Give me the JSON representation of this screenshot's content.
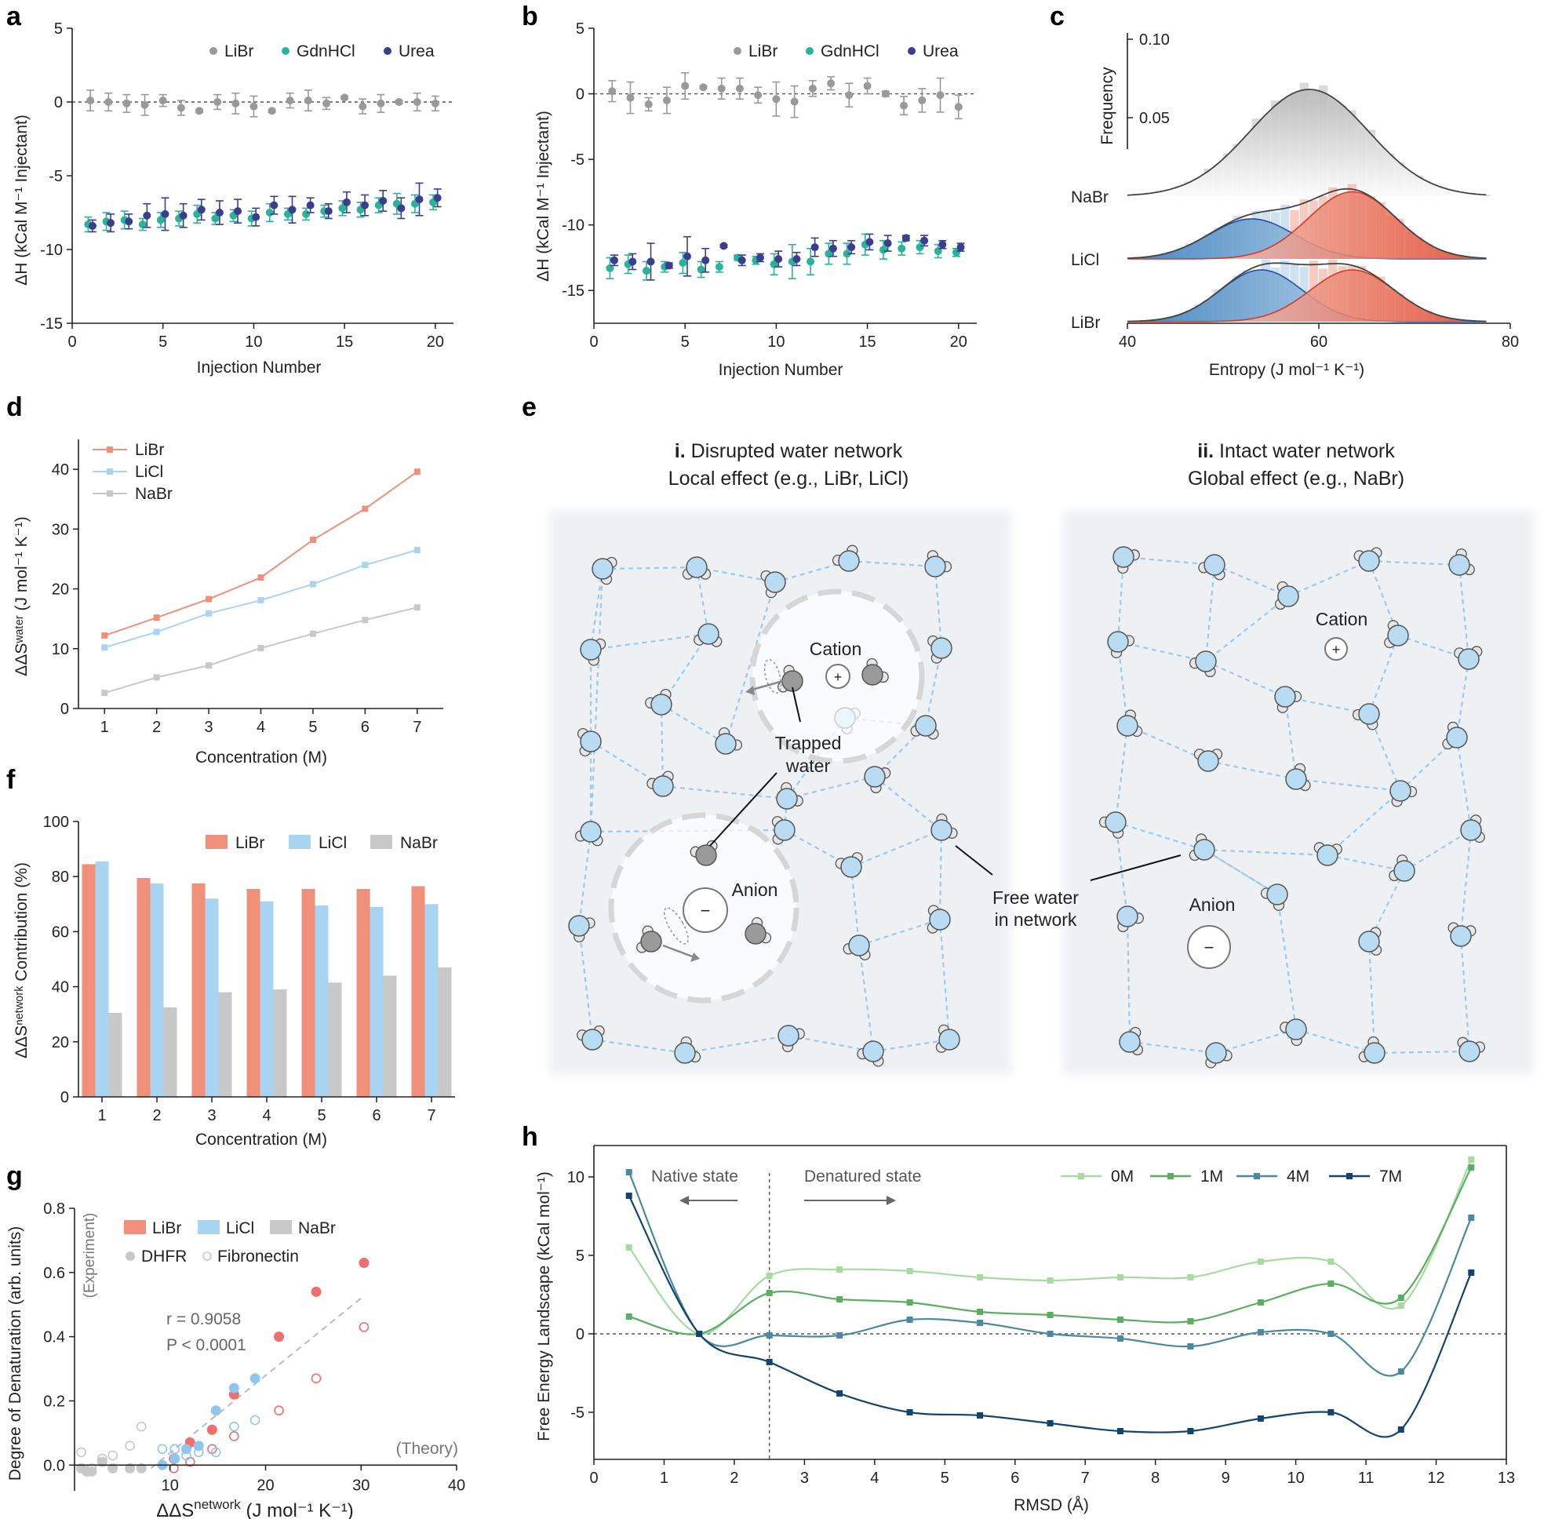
{
  "colors": {
    "libr": "#f0907a",
    "licl": "#a8d4f2",
    "nabr": "#c8c8c8",
    "gray_pts": "#999999",
    "teal": "#2bb39a",
    "navy": "#3b3d8f",
    "h0": "#a6dba0",
    "h1": "#5aae61",
    "h4": "#4a89a0",
    "h7": "#13446e",
    "water": "#b9dcf3",
    "water_edge": "#555555"
  },
  "chart_data": [
    {
      "id": "a",
      "type": "scatter",
      "panel_label": "a",
      "xlabel": "Injection Number",
      "ylabel": "ΔH (kCal M⁻¹ Injectant)",
      "xlim": [
        0,
        21
      ],
      "ylim": [
        -15,
        5
      ],
      "xticks": [
        "0",
        "5",
        "10",
        "15",
        "20"
      ],
      "yticks": [
        "5",
        "0",
        "-5",
        "-10",
        "-15"
      ],
      "legend": [
        "LiBr",
        "GdnHCl",
        "Urea"
      ],
      "x": [
        1,
        2,
        3,
        4,
        5,
        6,
        7,
        8,
        9,
        10,
        11,
        12,
        13,
        14,
        15,
        16,
        17,
        18,
        19,
        20
      ],
      "series": [
        {
          "name": "LiBr",
          "values": [
            0.1,
            0.0,
            -0.1,
            -0.2,
            0.1,
            -0.4,
            -0.6,
            0.0,
            -0.1,
            -0.3,
            -0.6,
            0.1,
            0.1,
            -0.1,
            0.3,
            -0.3,
            -0.1,
            0.0,
            0.0,
            -0.1
          ],
          "err": [
            0.7,
            0.6,
            0.6,
            0.7,
            0.4,
            0.5,
            0.1,
            0.5,
            0.7,
            0.7,
            0.1,
            0.5,
            0.7,
            0.4,
            0.1,
            0.5,
            0.6,
            0.1,
            0.6,
            0.5
          ]
        },
        {
          "name": "GdnHCl",
          "values": [
            -8.3,
            -8.1,
            -8.0,
            -8.3,
            -8.0,
            -7.9,
            -7.6,
            -7.9,
            -7.7,
            -7.9,
            -7.5,
            -7.6,
            -7.6,
            -7.4,
            -7.2,
            -7.3,
            -7.0,
            -6.9,
            -6.9,
            -6.8
          ],
          "err": [
            0.5,
            0.6,
            0.6,
            0.4,
            0.5,
            0.5,
            0.6,
            0.4,
            0.4,
            0.5,
            0.6,
            0.4,
            0.4,
            0.4,
            0.5,
            0.5,
            0.5,
            0.7,
            0.6,
            0.5
          ]
        },
        {
          "name": "Urea",
          "values": [
            -8.4,
            -8.2,
            -8.1,
            -7.7,
            -7.6,
            -7.7,
            -7.3,
            -7.5,
            -7.4,
            -7.8,
            -7.0,
            -7.3,
            -7.0,
            -7.4,
            -6.8,
            -7.0,
            -6.7,
            -7.2,
            -6.6,
            -6.5
          ],
          "err": [
            0.4,
            0.6,
            0.5,
            0.8,
            1.1,
            0.8,
            0.7,
            0.8,
            0.8,
            0.6,
            0.6,
            0.9,
            0.5,
            0.5,
            0.7,
            0.7,
            0.7,
            0.7,
            1.1,
            0.6
          ]
        }
      ]
    },
    {
      "id": "b",
      "type": "scatter",
      "panel_label": "b",
      "xlabel": "Injection Number",
      "ylabel": "ΔH (kCal M⁻¹ Injectant)",
      "xlim": [
        0,
        21
      ],
      "ylim": [
        -17.5,
        5
      ],
      "xticks": [
        "0",
        "5",
        "10",
        "15",
        "20"
      ],
      "yticks": [
        "5",
        "0",
        "-5",
        "-10",
        "-15"
      ],
      "legend": [
        "LiBr",
        "GdnHCl",
        "Urea"
      ],
      "x": [
        1,
        2,
        3,
        4,
        5,
        6,
        7,
        8,
        9,
        10,
        11,
        12,
        13,
        14,
        15,
        16,
        17,
        18,
        19,
        20
      ],
      "series": [
        {
          "name": "LiBr",
          "values": [
            0.2,
            -0.3,
            -0.8,
            -0.5,
            0.6,
            0.5,
            0.4,
            0.4,
            -0.1,
            -0.4,
            -0.6,
            0.4,
            0.8,
            -0.1,
            0.6,
            0.0,
            -0.9,
            -0.5,
            -0.1,
            -1.0
          ],
          "err": [
            0.8,
            1.2,
            0.5,
            1.0,
            1.0,
            0.1,
            0.8,
            0.8,
            0.6,
            1.3,
            1.2,
            0.6,
            0.5,
            0.9,
            0.6,
            0.2,
            0.7,
            0.9,
            1.3,
            0.9
          ]
        },
        {
          "name": "GdnHCl",
          "values": [
            -13.3,
            -13.0,
            -13.5,
            -13.2,
            -12.9,
            -13.4,
            -13.2,
            -12.5,
            -12.7,
            -13.0,
            -12.8,
            -12.8,
            -12.2,
            -12.2,
            -11.5,
            -11.9,
            -11.8,
            -11.7,
            -12.0,
            -12.1
          ],
          "err": [
            0.8,
            0.7,
            0.7,
            0.4,
            0.8,
            0.6,
            0.4,
            0.2,
            0.3,
            0.8,
            1.3,
            1.0,
            0.8,
            0.8,
            0.8,
            0.7,
            0.5,
            0.5,
            0.5,
            0.3
          ]
        },
        {
          "name": "Urea",
          "values": [
            -12.7,
            -12.8,
            -12.8,
            -13.1,
            -12.4,
            -12.7,
            -11.6,
            -12.7,
            -12.5,
            -12.6,
            -12.6,
            -11.7,
            -11.8,
            -11.7,
            -11.3,
            -11.4,
            -11.0,
            -11.2,
            -11.5,
            -11.7
          ],
          "err": [
            0.4,
            0.6,
            1.4,
            0.2,
            1.5,
            0.9,
            0.1,
            0.4,
            0.3,
            0.6,
            0.5,
            0.7,
            0.6,
            0.5,
            0.6,
            0.6,
            0.2,
            0.4,
            0.3,
            0.3
          ]
        }
      ]
    },
    {
      "id": "c",
      "type": "area",
      "panel_label": "c",
      "xlabel": "Entropy (J mol⁻¹ K⁻¹)",
      "ylabel": "Frequency",
      "xlim": [
        40,
        80
      ],
      "xticks": [
        "40",
        "60",
        "80"
      ],
      "yticks": [
        "0.10",
        "0.05"
      ],
      "row_labels": [
        "NaBr",
        "LiCl",
        "LiBr"
      ],
      "rows": [
        {
          "name": "NaBr",
          "fit_peaks": [
            {
              "mu": 59,
              "sigma": 6.2,
              "amp": 0.068
            }
          ]
        },
        {
          "name": "LiCl",
          "fit_peaks": [
            {
              "mu": 53,
              "sigma": 4.5,
              "amp": 0.034
            },
            {
              "mu": 63.5,
              "sigma": 4.6,
              "amp": 0.057
            }
          ]
        },
        {
          "name": "LiBr",
          "fit_peaks": [
            {
              "mu": 54,
              "sigma": 4.3,
              "amp": 0.044
            },
            {
              "mu": 63.5,
              "sigma": 4.4,
              "amp": 0.044
            }
          ]
        }
      ]
    },
    {
      "id": "d",
      "type": "line",
      "panel_label": "d",
      "xlabel": "Concentration (M)",
      "ylabel": "ΔΔSʷᵃᵗᵉʳ (J mol⁻¹ K⁻¹)",
      "xlim": [
        0.5,
        7.5
      ],
      "ylim": [
        0,
        45
      ],
      "xticks": [
        "1",
        "2",
        "3",
        "4",
        "5",
        "6",
        "7"
      ],
      "yticks": [
        "0",
        "10",
        "20",
        "30",
        "40"
      ],
      "x": [
        1,
        2,
        3,
        4,
        5,
        6,
        7
      ],
      "series": [
        {
          "name": "LiBr",
          "values": [
            12.2,
            15.2,
            18.3,
            21.9,
            28.2,
            33.4,
            39.6
          ]
        },
        {
          "name": "LiCl",
          "values": [
            10.2,
            12.8,
            15.9,
            18.1,
            20.8,
            24.0,
            26.5
          ]
        },
        {
          "name": "NaBr",
          "values": [
            2.6,
            5.2,
            7.2,
            10.1,
            12.5,
            14.8,
            16.9
          ]
        }
      ]
    },
    {
      "id": "f",
      "type": "bar",
      "panel_label": "f",
      "xlabel": "Concentration (M)",
      "ylabel": "ΔΔSⁿᵉᵗʷᵒʳᵏ Contribution (%)",
      "ylim": [
        0,
        100
      ],
      "categories": [
        "1",
        "2",
        "3",
        "4",
        "5",
        "6",
        "7"
      ],
      "yticks": [
        "0",
        "20",
        "40",
        "60",
        "80",
        "100"
      ],
      "series": [
        {
          "name": "LiBr",
          "values": [
            84.5,
            79.5,
            77.5,
            75.5,
            75.5,
            75.5,
            76.5
          ]
        },
        {
          "name": "LiCl",
          "values": [
            85.5,
            77.5,
            72.0,
            71.0,
            69.5,
            69.0,
            70.0
          ]
        },
        {
          "name": "NaBr",
          "values": [
            30.5,
            32.5,
            38.0,
            39.0,
            41.5,
            44.0,
            47.0
          ]
        }
      ]
    },
    {
      "id": "g",
      "type": "scatter",
      "panel_label": "g",
      "xlabel": "ΔΔS",
      "xlabel_sup": "network",
      "xlabel_units": " (J mol⁻¹ K⁻¹)",
      "ylabel": "Degree of Denaturation (arb. units)",
      "xlim": [
        0,
        40
      ],
      "ylim": [
        -0.08,
        0.8
      ],
      "xticks": [
        "10",
        "20",
        "30",
        "40"
      ],
      "yticks": [
        "0.0",
        "0.2",
        "0.4",
        "0.6",
        "0.8"
      ],
      "legend": [
        "LiBr",
        "LiCl",
        "NaBr",
        "DHFR",
        "Fibronectin"
      ],
      "annotation_r": "r = 0.9058",
      "annotation_p": "P < 0.0001",
      "corner_experiment": "(Experiment)",
      "corner_theory": "(Theory)",
      "fit_line": {
        "x0": 8,
        "y0": -0.01,
        "x1": 30,
        "y1": 0.52
      },
      "points": [
        {
          "salt": "LiBr",
          "protein": "DHFR",
          "x": 30.3,
          "y": 0.63
        },
        {
          "salt": "LiBr",
          "protein": "DHFR",
          "x": 25.3,
          "y": 0.54
        },
        {
          "salt": "LiBr",
          "protein": "DHFR",
          "x": 21.4,
          "y": 0.4
        },
        {
          "salt": "LiBr",
          "protein": "DHFR",
          "x": 16.7,
          "y": 0.22
        },
        {
          "salt": "LiBr",
          "protein": "DHFR",
          "x": 14.4,
          "y": 0.11
        },
        {
          "salt": "LiBr",
          "protein": "DHFR",
          "x": 12.1,
          "y": 0.07
        },
        {
          "salt": "LiBr",
          "protein": "DHFR",
          "x": 10.4,
          "y": 0.02
        },
        {
          "salt": "LiBr",
          "protein": "Fibronectin",
          "x": 30.3,
          "y": 0.43
        },
        {
          "salt": "LiBr",
          "protein": "Fibronectin",
          "x": 25.3,
          "y": 0.27
        },
        {
          "salt": "LiBr",
          "protein": "Fibronectin",
          "x": 21.4,
          "y": 0.17
        },
        {
          "salt": "LiBr",
          "protein": "Fibronectin",
          "x": 16.7,
          "y": 0.09
        },
        {
          "salt": "LiBr",
          "protein": "Fibronectin",
          "x": 14.4,
          "y": 0.05
        },
        {
          "salt": "LiBr",
          "protein": "Fibronectin",
          "x": 12.1,
          "y": 0.01
        },
        {
          "salt": "LiBr",
          "protein": "Fibronectin",
          "x": 10.4,
          "y": -0.01
        },
        {
          "salt": "LiCl",
          "protein": "DHFR",
          "x": 18.9,
          "y": 0.27
        },
        {
          "salt": "LiCl",
          "protein": "DHFR",
          "x": 16.7,
          "y": 0.24
        },
        {
          "salt": "LiCl",
          "protein": "DHFR",
          "x": 14.8,
          "y": 0.17
        },
        {
          "salt": "LiCl",
          "protein": "DHFR",
          "x": 13.0,
          "y": 0.06
        },
        {
          "salt": "LiCl",
          "protein": "DHFR",
          "x": 11.7,
          "y": 0.05
        },
        {
          "salt": "LiCl",
          "protein": "DHFR",
          "x": 10.5,
          "y": 0.02
        },
        {
          "salt": "LiCl",
          "protein": "DHFR",
          "x": 9.2,
          "y": 0.0
        },
        {
          "salt": "LiCl",
          "protein": "Fibronectin",
          "x": 18.9,
          "y": 0.14
        },
        {
          "salt": "LiCl",
          "protein": "Fibronectin",
          "x": 16.7,
          "y": 0.12
        },
        {
          "salt": "LiCl",
          "protein": "Fibronectin",
          "x": 14.8,
          "y": 0.04
        },
        {
          "salt": "LiCl",
          "protein": "Fibronectin",
          "x": 13.0,
          "y": 0.04
        },
        {
          "salt": "LiCl",
          "protein": "Fibronectin",
          "x": 11.7,
          "y": 0.03
        },
        {
          "salt": "LiCl",
          "protein": "Fibronectin",
          "x": 10.5,
          "y": 0.05
        },
        {
          "salt": "LiCl",
          "protein": "Fibronectin",
          "x": 9.2,
          "y": 0.05
        },
        {
          "salt": "NaBr",
          "protein": "DHFR",
          "x": 7.0,
          "y": -0.01
        },
        {
          "salt": "NaBr",
          "protein": "DHFR",
          "x": 5.8,
          "y": -0.01
        },
        {
          "salt": "NaBr",
          "protein": "DHFR",
          "x": 4.0,
          "y": -0.01
        },
        {
          "salt": "NaBr",
          "protein": "DHFR",
          "x": 2.9,
          "y": 0.01
        },
        {
          "salt": "NaBr",
          "protein": "DHFR",
          "x": 1.8,
          "y": -0.02
        },
        {
          "salt": "NaBr",
          "protein": "DHFR",
          "x": 1.3,
          "y": -0.02
        },
        {
          "salt": "NaBr",
          "protein": "DHFR",
          "x": 0.7,
          "y": -0.01
        },
        {
          "salt": "NaBr",
          "protein": "Fibronectin",
          "x": 7.0,
          "y": 0.12
        },
        {
          "salt": "NaBr",
          "protein": "Fibronectin",
          "x": 5.8,
          "y": 0.06
        },
        {
          "salt": "NaBr",
          "protein": "Fibronectin",
          "x": 4.0,
          "y": 0.03
        },
        {
          "salt": "NaBr",
          "protein": "Fibronectin",
          "x": 2.9,
          "y": 0.02
        },
        {
          "salt": "NaBr",
          "protein": "Fibronectin",
          "x": 1.8,
          "y": -0.01
        },
        {
          "salt": "NaBr",
          "protein": "Fibronectin",
          "x": 1.3,
          "y": -0.02
        },
        {
          "salt": "NaBr",
          "protein": "Fibronectin",
          "x": 0.7,
          "y": 0.04
        }
      ]
    },
    {
      "id": "h",
      "type": "line",
      "panel_label": "h",
      "xlabel": "RMSD (Å)",
      "ylabel": "Free Energy Landscape (kCal mol⁻¹)",
      "xlim": [
        0,
        13
      ],
      "ylim": [
        -8,
        12
      ],
      "xticks": [
        "0",
        "1",
        "2",
        "3",
        "4",
        "5",
        "6",
        "7",
        "8",
        "9",
        "10",
        "11",
        "12",
        "13"
      ],
      "yticks": [
        "10",
        "5",
        "0",
        "-5"
      ],
      "native_label": "Native state",
      "denatured_label": "Denatured state",
      "divider_x": 2.5,
      "x": [
        0.5,
        1.5,
        2.5,
        3.5,
        4.5,
        5.5,
        6.5,
        7.5,
        8.5,
        9.5,
        10.5,
        11.5,
        12.5
      ],
      "series": [
        {
          "name": "0M",
          "values": [
            5.5,
            0.0,
            3.7,
            4.1,
            4.0,
            3.6,
            3.4,
            3.6,
            3.6,
            4.6,
            4.6,
            1.8,
            11.1
          ]
        },
        {
          "name": "1M",
          "values": [
            1.1,
            0.0,
            2.6,
            2.2,
            2.0,
            1.4,
            1.2,
            0.9,
            0.8,
            2.0,
            3.2,
            2.3,
            10.6
          ]
        },
        {
          "name": "4M",
          "values": [
            10.3,
            0.0,
            -0.1,
            -0.1,
            0.9,
            0.7,
            0.0,
            -0.3,
            -0.8,
            0.1,
            0.0,
            -2.4,
            7.4
          ]
        },
        {
          "name": "7M",
          "values": [
            8.8,
            0.0,
            -1.8,
            -3.8,
            -5.0,
            -5.2,
            -5.7,
            -6.2,
            -6.2,
            -5.4,
            -5.0,
            -6.1,
            3.9
          ]
        }
      ]
    }
  ],
  "panel_e": {
    "panel_label": "e",
    "left_title_bold": "i.",
    "left_title_rest": " Disrupted water network",
    "left_subtitle": "Local effect (e.g., LiBr, LiCl)",
    "right_title_bold": "ii.",
    "right_title_rest": " Intact water network",
    "right_subtitle": "Global effect (e.g., NaBr)",
    "cation": "Cation",
    "anion": "Anion",
    "trapped_1": "Trapped",
    "trapped_2": "water",
    "free_1": "Free water",
    "free_2": "in network",
    "plus": "+",
    "minus": "−"
  }
}
